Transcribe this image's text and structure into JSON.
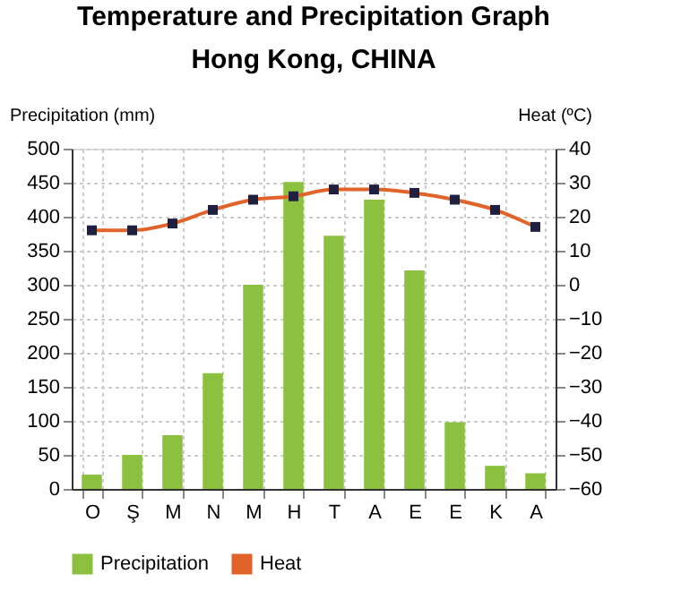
{
  "chart_data": {
    "type": "bar",
    "title": [
      "Temperature and Precipitation Graph",
      "Hong Kong, CHINA"
    ],
    "categories": [
      "O",
      "Ş",
      "M",
      "N",
      "M",
      "H",
      "T",
      "A",
      "E",
      "E",
      "K",
      "A"
    ],
    "series": [
      {
        "name": "Precipitation",
        "color": "#8cc13f",
        "values": [
          21,
          50,
          79,
          170,
          300,
          451,
          372,
          425,
          321,
          98,
          34,
          23
        ]
      },
      {
        "name": "Heat",
        "type": "line",
        "axis": "y2",
        "color": "#e0632a",
        "marker": "square",
        "values": [
          16,
          16,
          18,
          22,
          25,
          26,
          28,
          28,
          27,
          25,
          22,
          17
        ]
      }
    ],
    "ylabel": "Precipitation (mm)",
    "y2label": "Heat (ºC)",
    "ylim": [
      0,
      500
    ],
    "yticks": [
      0,
      50,
      100,
      150,
      200,
      250,
      300,
      350,
      400,
      450,
      500
    ],
    "y2lim": [
      -60,
      40
    ],
    "y2ticks": [
      -60,
      -50,
      -40,
      -30,
      -20,
      -10,
      0,
      10,
      20,
      30,
      40
    ],
    "grid": true,
    "legend": "bottom"
  }
}
